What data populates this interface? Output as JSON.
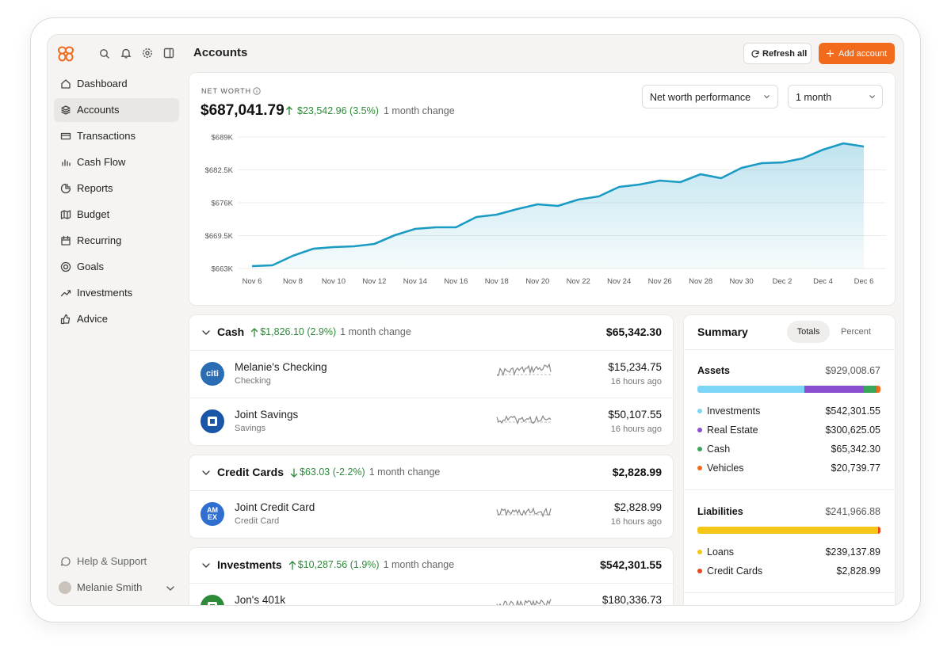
{
  "header": {
    "title": "Accounts",
    "refresh": "Refresh all",
    "add": "Add account"
  },
  "sidebar": {
    "items": [
      "Dashboard",
      "Accounts",
      "Transactions",
      "Cash Flow",
      "Reports",
      "Budget",
      "Recurring",
      "Goals",
      "Investments",
      "Advice"
    ],
    "active": 1,
    "help": "Help & Support",
    "user": "Melanie Smith"
  },
  "net_worth": {
    "label": "NET WORTH",
    "value": "$687,041.79",
    "change": "$23,542.96 (3.5%)",
    "period": "1 month change",
    "selectors": [
      "Net worth performance",
      "1 month"
    ]
  },
  "chart_data": {
    "type": "area",
    "color": "#1a9bc4",
    "grid": true,
    "categories": [
      "Nov 6",
      null,
      "Nov 8",
      null,
      "Nov 10",
      null,
      "Nov 12",
      null,
      "Nov 14",
      null,
      "Nov 16",
      null,
      "Nov 18",
      null,
      "Nov 20",
      null,
      "Nov 22",
      null,
      "Nov 24",
      null,
      "Nov 26",
      null,
      "Nov 28",
      null,
      "Nov 30",
      null,
      "Dec 2",
      null,
      "Dec 4",
      null,
      "Dec 6"
    ],
    "values": [
      663470,
      663630,
      665500,
      666900,
      667230,
      667380,
      667850,
      669580,
      670830,
      671140,
      671140,
      673180,
      673650,
      674750,
      675680,
      675370,
      676620,
      677250,
      679130,
      679600,
      680380,
      680070,
      681640,
      680850,
      682890,
      683830,
      683980,
      684770,
      686490,
      687740,
      687120
    ],
    "ylim": [
      663000,
      689000
    ],
    "yticks": [
      {
        "value": 663000,
        "label": "$663K"
      },
      {
        "value": 669500,
        "label": "$669.5K"
      },
      {
        "value": 676000,
        "label": "$676K"
      },
      {
        "value": 682500,
        "label": "$682.5K"
      },
      {
        "value": 689000,
        "label": "$689K"
      }
    ]
  },
  "groups": [
    {
      "name": "Cash",
      "direction": "up",
      "change": "$1,826.10 (2.9%)",
      "period": "1 month change",
      "total": "$65,342.30",
      "accounts": [
        {
          "name": "Melanie's Checking",
          "type": "Checking",
          "balance": "$15,234.75",
          "updated": "16 hours ago",
          "logo_color": "#2a6db5",
          "logo_text": [
            "citi"
          ]
        },
        {
          "name": "Joint Savings",
          "type": "Savings",
          "balance": "$50,107.55",
          "updated": "16 hours ago",
          "logo_color": "#1a56a8"
        }
      ]
    },
    {
      "name": "Credit Cards",
      "direction": "down",
      "change": "$63.03 (-2.2%)",
      "period": "1 month change",
      "total": "$2,828.99",
      "accounts": [
        {
          "name": "Joint Credit Card",
          "type": "Credit Card",
          "balance": "$2,828.99",
          "updated": "16 hours ago",
          "logo_color": "#2e6fd0",
          "logo_text": [
            "AM",
            "EX"
          ]
        }
      ]
    },
    {
      "name": "Investments",
      "direction": "up",
      "change": "$10,287.56 (1.9%)",
      "period": "1 month change",
      "total": "$542,301.55",
      "accounts": [
        {
          "name": "Jon's 401k",
          "balance": "$180,336.73",
          "logo_color": "#2e8b3a"
        }
      ]
    }
  ],
  "summary": {
    "title": "Summary",
    "tabs": [
      "Totals",
      "Percent"
    ],
    "active_tab": 0,
    "sections": [
      {
        "name": "Assets",
        "total": "$929,008.67",
        "items": [
          {
            "name": "Investments",
            "value": 542301.55,
            "label": "$542,301.55",
            "color": "#7dd6f6"
          },
          {
            "name": "Real Estate",
            "value": 300625.05,
            "label": "$300,625.05",
            "color": "#8a4fd0"
          },
          {
            "name": "Cash",
            "value": 65342.3,
            "label": "$65,342.30",
            "color": "#3aa65a"
          },
          {
            "name": "Vehicles",
            "value": 20739.77,
            "label": "$20,739.77",
            "color": "#f26b1d"
          }
        ]
      },
      {
        "name": "Liabilities",
        "total": "$241,966.88",
        "items": [
          {
            "name": "Loans",
            "value": 239137.89,
            "label": "$239,137.89",
            "color": "#f5c518"
          },
          {
            "name": "Credit Cards",
            "value": 2828.99,
            "label": "$2,828.99",
            "color": "#e8481f"
          }
        ]
      }
    ]
  }
}
